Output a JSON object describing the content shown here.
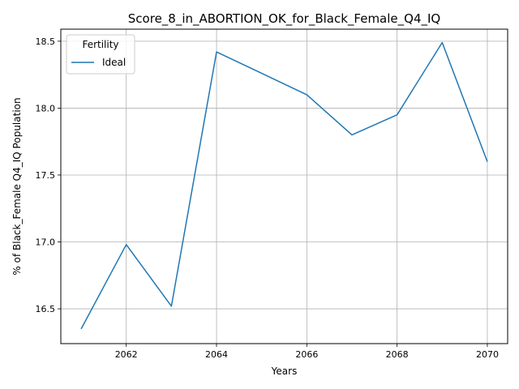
{
  "chart_data": {
    "type": "line",
    "title": "Score_8_in_ABORTION_OK_for_Black_Female_Q4_IQ",
    "xlabel": "Years",
    "ylabel": "% of Black_Female Q4_IQ Population",
    "xlim": [
      2060.55,
      2070.45
    ],
    "ylim": [
      16.24,
      18.59
    ],
    "xticks": [
      2062,
      2064,
      2066,
      2068,
      2070
    ],
    "yticks": [
      16.5,
      17.0,
      17.5,
      18.0,
      18.5
    ],
    "xtick_labels": [
      "2062",
      "2064",
      "2066",
      "2068",
      "2070"
    ],
    "ytick_labels": [
      "16.5",
      "17.0",
      "17.5",
      "18.0",
      "18.5"
    ],
    "grid": true,
    "legend": {
      "title": "Fertility",
      "placement": "top-left"
    },
    "x": [
      2061,
      2062,
      2063,
      2064,
      2065,
      2066,
      2067,
      2068,
      2069,
      2070
    ],
    "series": [
      {
        "name": "Ideal",
        "color": "#1f77b4",
        "values": [
          16.35,
          16.98,
          16.52,
          18.42,
          18.26,
          18.1,
          17.8,
          17.95,
          18.49,
          17.6
        ]
      }
    ]
  }
}
